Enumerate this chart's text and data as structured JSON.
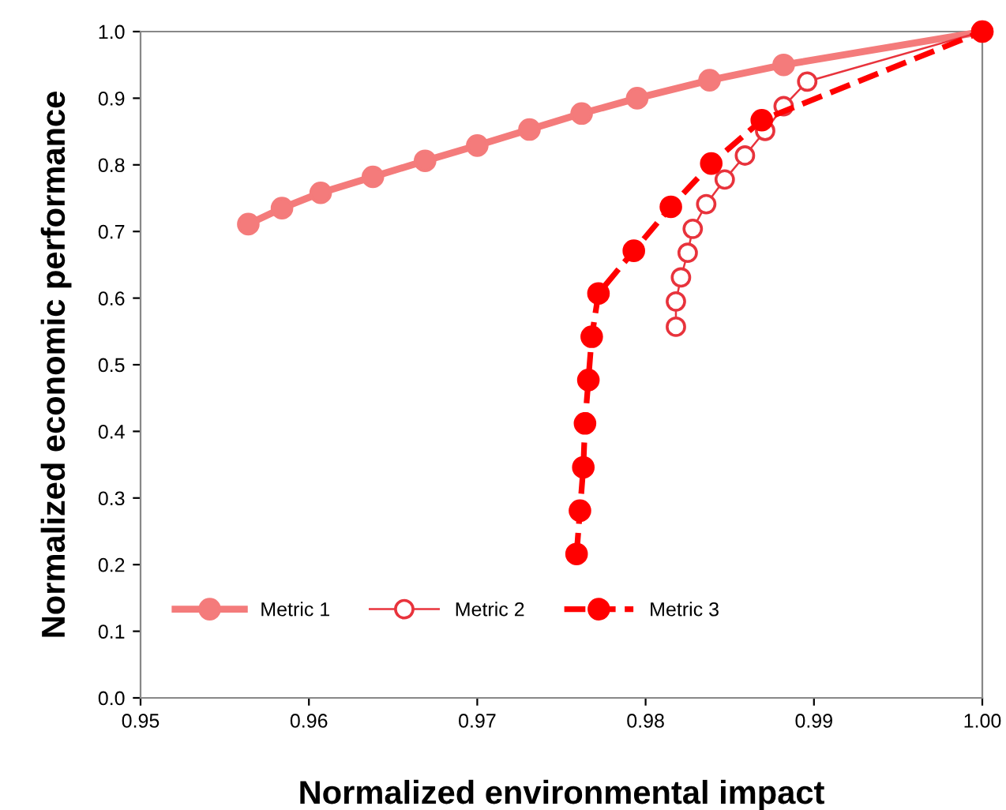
{
  "chart_data": {
    "type": "line",
    "xlabel": "Normalized environmental impact",
    "ylabel": "Normalized economic performance",
    "xlim": [
      0.95,
      1.0
    ],
    "xticks": [
      {
        "value": 0.95,
        "label": "0.95"
      },
      {
        "value": 0.96,
        "label": "0.96"
      },
      {
        "value": 0.97,
        "label": "0.97"
      },
      {
        "value": 0.98,
        "label": "0.98"
      },
      {
        "value": 0.99,
        "label": "0.99"
      },
      {
        "value": 1.0,
        "label": "1.00"
      }
    ],
    "ylim": [
      0,
      1
    ],
    "yticks": [
      {
        "value": 0,
        "label": "0.0"
      },
      {
        "value": 0.1,
        "label": "0.1"
      },
      {
        "value": 0.2,
        "label": "0.2"
      },
      {
        "value": 0.3,
        "label": "0.3"
      },
      {
        "value": 0.4,
        "label": "0.4"
      },
      {
        "value": 0.5,
        "label": "0.5"
      },
      {
        "value": 0.6,
        "label": "0.6"
      },
      {
        "value": 0.7,
        "label": "0.7"
      },
      {
        "value": 0.8,
        "label": "0.8"
      },
      {
        "value": 0.9,
        "label": "0.9"
      },
      {
        "value": 1.0,
        "label": "1.0"
      }
    ],
    "grid": false,
    "legend": "bottom left",
    "marker": "circle",
    "series": [
      {
        "name": "Metric 1",
        "color": "#f47b7b",
        "line_style": "solid",
        "x": [
          0.9564,
          0.9584,
          0.9607,
          0.9638,
          0.9669,
          0.97,
          0.9731,
          0.9762,
          0.9795,
          0.9838,
          0.9882,
          1.0
        ],
        "values": [
          0.711,
          0.735,
          0.758,
          0.782,
          0.806,
          0.829,
          0.853,
          0.877,
          0.9,
          0.927,
          0.95,
          1.0
        ]
      },
      {
        "name": "Metric 2",
        "color": "#e8333c",
        "line_style": "solid",
        "x": [
          0.9818,
          0.9818,
          0.9821,
          0.9825,
          0.9828,
          0.9836,
          0.9847,
          0.9859,
          0.9871,
          0.9882,
          0.9896,
          1.0
        ],
        "values": [
          0.557,
          0.595,
          0.631,
          0.668,
          0.704,
          0.741,
          0.778,
          0.814,
          0.851,
          0.888,
          0.925,
          1.0
        ]
      },
      {
        "name": "Metric 3",
        "color": "#ff0000",
        "line_style": "dashed",
        "x": [
          0.9759,
          0.9761,
          0.9763,
          0.9764,
          0.9766,
          0.9768,
          0.9772,
          0.9793,
          0.9815,
          0.9839,
          0.9869,
          1.0
        ],
        "values": [
          0.216,
          0.281,
          0.346,
          0.412,
          0.477,
          0.542,
          0.607,
          0.671,
          0.737,
          0.802,
          0.867,
          1.0
        ]
      }
    ]
  }
}
